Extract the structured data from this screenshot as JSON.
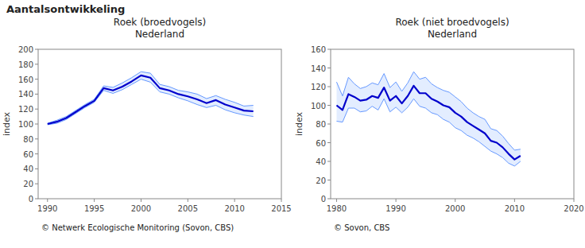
{
  "title": "Aantalsontwikkeling",
  "chart_data": [
    {
      "type": "line",
      "title": "Roek (broedvogels)\nNederland",
      "ylabel": "index",
      "annotations": [
        "©  Netwerk Ecologische Monitoring (Sovon, CBS)"
      ],
      "x": [
        1990,
        1991,
        1992,
        1993,
        1994,
        1995,
        1996,
        1997,
        1998,
        1999,
        2000,
        2001,
        2002,
        2003,
        2004,
        2005,
        2006,
        2007,
        2008,
        2009,
        2010,
        2011,
        2012
      ],
      "xlim": [
        1989,
        2015
      ],
      "ylim": [
        0,
        200
      ],
      "xticks": [
        1990,
        1995,
        2000,
        2005,
        2010,
        2015
      ],
      "yticks": [
        0,
        20,
        40,
        60,
        80,
        100,
        120,
        140,
        160,
        180,
        200
      ],
      "grid": false,
      "series": [
        {
          "type": "band",
          "color": "#6699FF",
          "low": [
            99,
            101,
            106,
            114,
            122,
            129,
            145,
            141,
            146,
            153,
            160,
            156,
            143,
            140,
            135,
            131,
            126,
            122,
            125,
            119,
            115,
            112,
            110
          ],
          "high": [
            101,
            105,
            110,
            118,
            126,
            133,
            151,
            149,
            155,
            162,
            170,
            168,
            153,
            150,
            145,
            143,
            140,
            134,
            138,
            133,
            129,
            124,
            125
          ]
        },
        {
          "type": "line",
          "color": "#0000CC",
          "values": [
            100,
            103,
            108,
            116,
            124,
            131,
            148,
            145,
            150,
            157,
            165,
            162,
            148,
            145,
            140,
            137,
            133,
            128,
            132,
            126,
            122,
            118,
            117
          ]
        }
      ]
    },
    {
      "type": "line",
      "title": "Roek (niet broedvogels)\nNederland",
      "ylabel": "index",
      "annotations": [
        "©  Sovon, CBS"
      ],
      "x": [
        1980,
        1981,
        1982,
        1983,
        1984,
        1985,
        1986,
        1987,
        1988,
        1989,
        1990,
        1991,
        1992,
        1993,
        1994,
        1995,
        1996,
        1997,
        1998,
        1999,
        2000,
        2001,
        2002,
        2003,
        2004,
        2005,
        2006,
        2007,
        2008,
        2009,
        2010,
        2011
      ],
      "xlim": [
        1979,
        2020
      ],
      "ylim": [
        0,
        160
      ],
      "xticks": [
        1980,
        1990,
        2000,
        2010,
        2020
      ],
      "yticks": [
        0,
        20,
        40,
        60,
        80,
        100,
        120,
        140,
        160
      ],
      "grid": false,
      "series": [
        {
          "type": "band",
          "color": "#6699FF",
          "low": [
            83,
            82,
            97,
            97,
            93,
            94,
            99,
            95,
            107,
            93,
            98,
            92,
            98,
            107,
            99,
            97,
            92,
            90,
            85,
            82,
            76,
            73,
            68,
            65,
            61,
            56,
            51,
            48,
            44,
            38,
            35,
            40
          ],
          "high": [
            125,
            110,
            130,
            123,
            118,
            120,
            124,
            122,
            134,
            119,
            125,
            115,
            124,
            136,
            128,
            130,
            123,
            119,
            116,
            114,
            109,
            104,
            97,
            92,
            88,
            85,
            75,
            73,
            67,
            59,
            52,
            53
          ]
        },
        {
          "type": "line",
          "color": "#0000CC",
          "values": [
            100,
            95,
            112,
            109,
            105,
            106,
            110,
            108,
            119,
            105,
            110,
            102,
            110,
            121,
            113,
            113,
            107,
            104,
            100,
            98,
            92,
            88,
            82,
            78,
            74,
            70,
            62,
            60,
            55,
            48,
            42,
            46
          ]
        }
      ]
    }
  ]
}
